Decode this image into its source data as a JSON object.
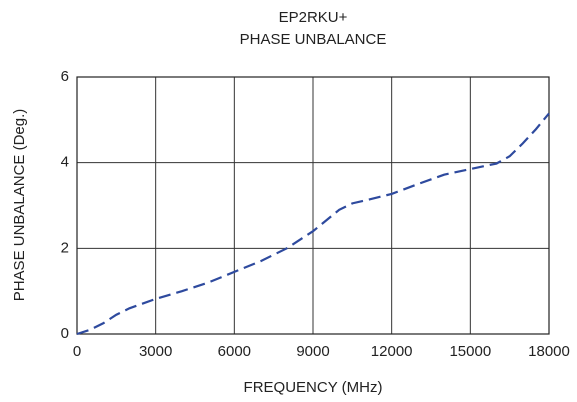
{
  "chart_data": {
    "type": "line",
    "title": "EP2RKU+",
    "subtitle": "PHASE UNBALANCE",
    "xlabel": "FREQUENCY (MHz)",
    "ylabel": "PHASE UNBALANCE (Deg.)",
    "x": [
      0,
      500,
      1000,
      1500,
      2000,
      3000,
      4000,
      5000,
      6000,
      7000,
      8000,
      9000,
      9500,
      10000,
      10500,
      11000,
      12000,
      13000,
      14000,
      15000,
      16000,
      16500,
      17000,
      17500,
      18000
    ],
    "series": [
      {
        "name": "EP2RKU+",
        "color": "#2e4a9e",
        "values": [
          0.0,
          0.1,
          0.25,
          0.45,
          0.6,
          0.82,
          1.0,
          1.2,
          1.45,
          1.7,
          2.0,
          2.4,
          2.65,
          2.9,
          3.05,
          3.12,
          3.27,
          3.5,
          3.72,
          3.85,
          3.98,
          4.15,
          4.45,
          4.78,
          5.15
        ]
      }
    ],
    "xlim": [
      0,
      18000
    ],
    "xticks": [
      0,
      3000,
      6000,
      9000,
      12000,
      15000,
      18000
    ],
    "ylim": [
      0,
      6
    ],
    "yticks": [
      0,
      2,
      4,
      6
    ],
    "grid": true
  }
}
